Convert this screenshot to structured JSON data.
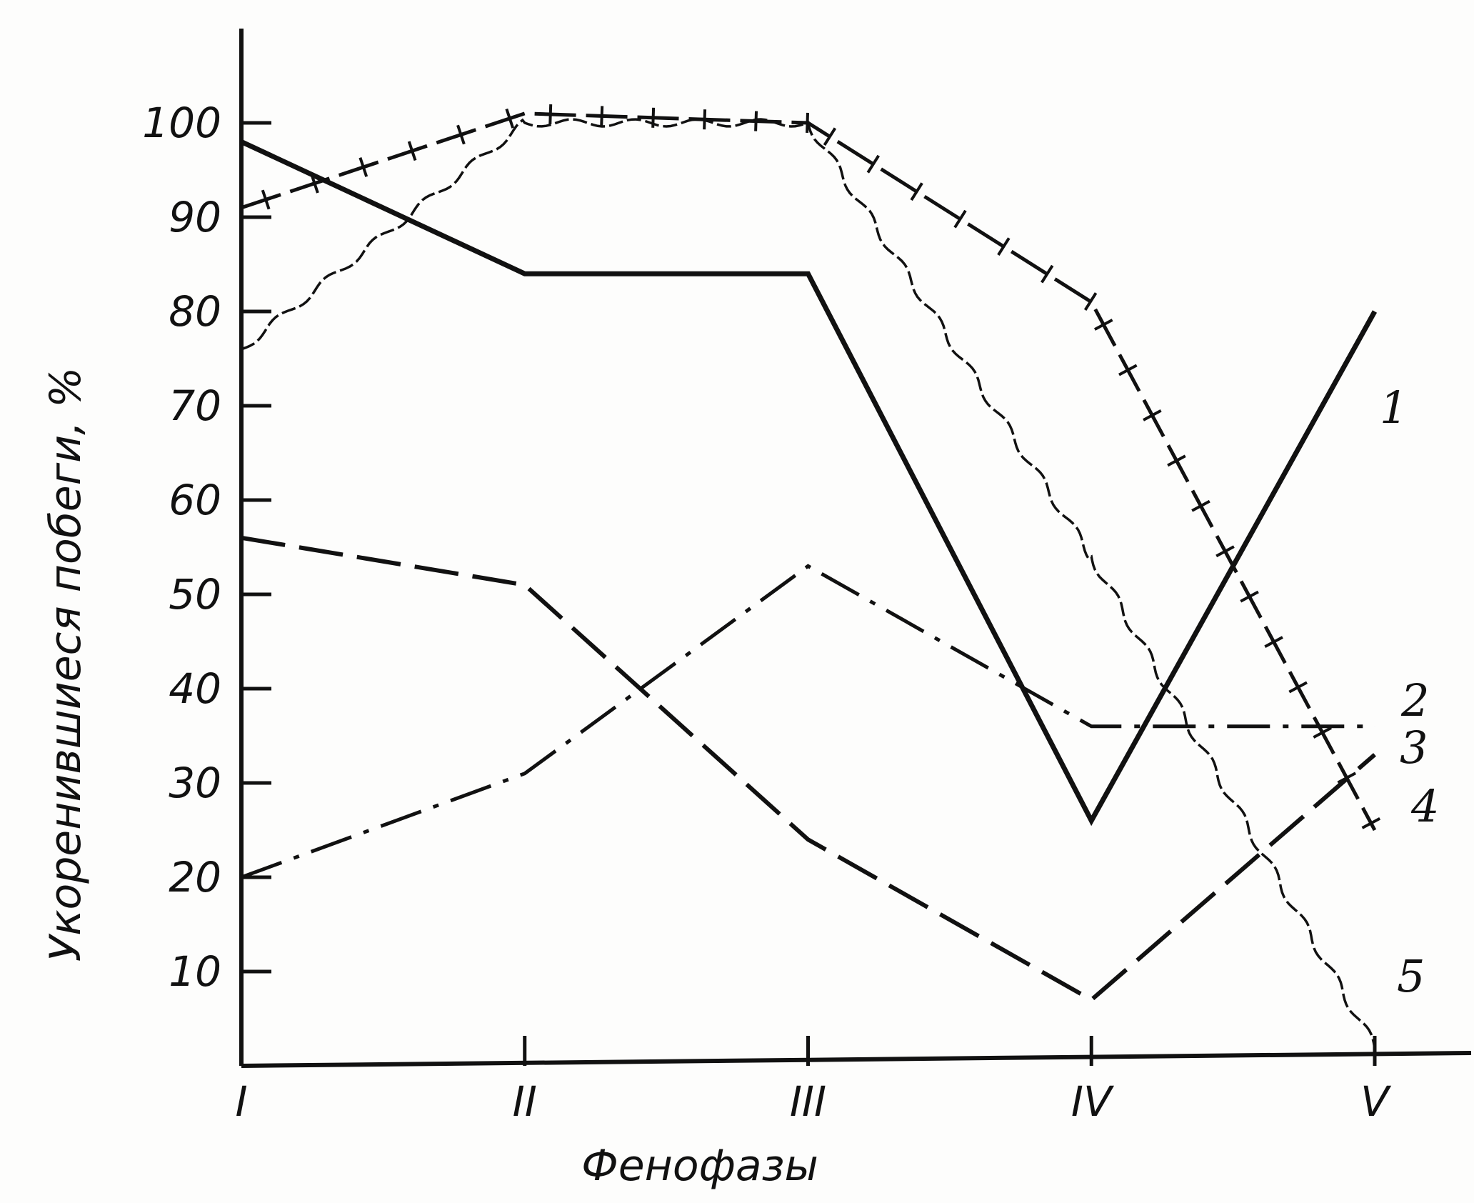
{
  "chart_data": {
    "type": "line",
    "title": "",
    "xlabel": "Фенофазы",
    "ylabel": "Укоренившиеся побеги, %",
    "categories": [
      "I",
      "II",
      "III",
      "IV",
      "V"
    ],
    "ylim": [
      0,
      110
    ],
    "yticks": [
      10,
      20,
      30,
      40,
      50,
      60,
      70,
      80,
      90,
      100
    ],
    "grid": false,
    "legend": "inline labels at right end",
    "series": [
      {
        "name": "1",
        "style": "solid",
        "values": [
          98,
          84,
          84,
          26,
          80
        ]
      },
      {
        "name": "2",
        "style": "dash-dot",
        "values": [
          20,
          31,
          53,
          36,
          36
        ]
      },
      {
        "name": "3",
        "style": "long-dash",
        "values": [
          56,
          51,
          24,
          7,
          33
        ]
      },
      {
        "name": "4",
        "style": "dash-tick",
        "values": [
          91,
          101,
          100,
          81,
          25
        ]
      },
      {
        "name": "5",
        "style": "wavy",
        "values": [
          76,
          100,
          100,
          54,
          2
        ]
      }
    ],
    "line_color": "#111111"
  }
}
